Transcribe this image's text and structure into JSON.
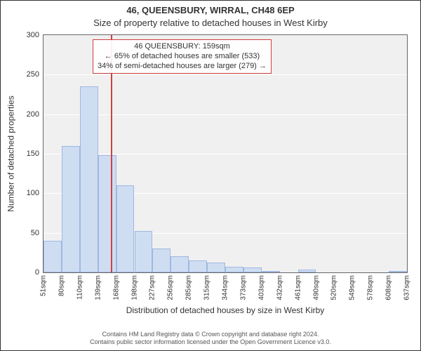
{
  "title": "46, QUEENSBURY, WIRRAL, CH48 6EP",
  "subtitle": "Size of property relative to detached houses in West Kirby",
  "ylabel": "Number of detached properties",
  "xlabel": "Distribution of detached houses by size in West Kirby",
  "footer_line1": "Contains HM Land Registry data © Crown copyright and database right 2024.",
  "footer_line2": "Contains public sector information licensed under the Open Government Licence v3.0.",
  "annotation": {
    "line1": "46 QUEENSBURY: 159sqm",
    "line2": "← 65% of detached houses are smaller (533)",
    "line3": "34% of semi-detached houses are larger (279) →"
  },
  "chart": {
    "type": "histogram",
    "plot_bg": "#f0f0f0",
    "grid_color": "#ffffff",
    "bar_fill": "#cfddf2",
    "bar_border": "#9fb8e0",
    "refline_color": "#d04040",
    "ylim": [
      0,
      300
    ],
    "yticks": [
      0,
      50,
      100,
      150,
      200,
      250,
      300
    ],
    "xticks": [
      "51sqm",
      "80sqm",
      "110sqm",
      "139sqm",
      "168sqm",
      "198sqm",
      "227sqm",
      "256sqm",
      "285sqm",
      "315sqm",
      "344sqm",
      "373sqm",
      "403sqm",
      "432sqm",
      "461sqm",
      "490sqm",
      "520sqm",
      "549sqm",
      "578sqm",
      "608sqm",
      "637sqm"
    ],
    "values": [
      40,
      160,
      235,
      148,
      110,
      52,
      30,
      20,
      15,
      12,
      7,
      6,
      2,
      0,
      4,
      0,
      0,
      0,
      0,
      2
    ],
    "reference_index": 3.7
  },
  "colors": {
    "text": "#333333",
    "footer": "#555555",
    "border": "#333333",
    "plot_border": "#666666"
  },
  "fonts": {
    "title_size": 13,
    "subtitle_size": 13,
    "label_size": 12,
    "tick_size": 11,
    "xtick_size": 10,
    "anno_size": 11,
    "footer_size": 9
  }
}
